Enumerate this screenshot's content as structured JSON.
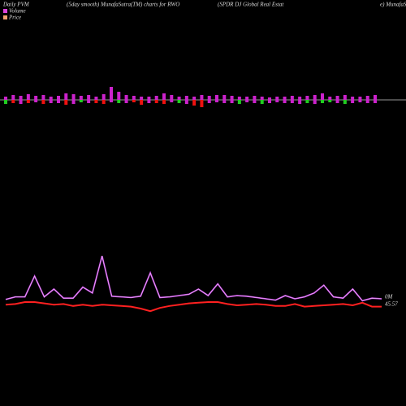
{
  "chart_data": [
    {
      "type": "bar",
      "title": "Daily PVM",
      "subtitle": "(5day smooth) MunafaSutra(TM) charts for RWO",
      "annotations": [
        "(SPDR DJ Global Real Estat",
        "e) MunafaS"
      ],
      "ylim": [
        -20,
        20
      ],
      "baseline_color": "#999999",
      "series": [
        {
          "color": "#cc22cc",
          "values": [
            4,
            6,
            5,
            7,
            5,
            6,
            4,
            5,
            8,
            7,
            5,
            6,
            4,
            7,
            16,
            10,
            6,
            5,
            4,
            4,
            5,
            8,
            6,
            4,
            5,
            4,
            6,
            5,
            6,
            6,
            5,
            4,
            4,
            5,
            4,
            3,
            4,
            4,
            5,
            4,
            5,
            6,
            8,
            4,
            5,
            6,
            4,
            4,
            5,
            6
          ]
        },
        {
          "colors": [
            "#22cc22",
            "#ee1111",
            "#cc22cc",
            "#ee1111",
            "#cc22cc",
            "#ee1111",
            "#cc22cc",
            "#cc22cc",
            "#ee1111",
            "#cc22cc",
            "#22cc22",
            "#cc22cc",
            "#ee1111",
            "#ee1111",
            "#cc22cc",
            "#22cc22",
            "#cc22cc",
            "#ee1111",
            "#ee1111",
            "#cc22cc",
            "#ee1111",
            "#ee1111",
            "#cc22cc",
            "#22cc22",
            "#cc22cc",
            "#ee1111",
            "#ee1111",
            "#cc22cc",
            "#cc22cc",
            "#cc22cc",
            "#cc22cc",
            "#22cc22",
            "#cc22cc",
            "#cc22cc",
            "#22cc22",
            "#cc22cc",
            "#cc22cc",
            "#cc22cc",
            "#cc22cc",
            "#cc22cc",
            "#22cc22",
            "#cc22cc",
            "#22cc22",
            "#22cc22",
            "#cc22cc",
            "#22cc22",
            "#cc22cc",
            "#cc22cc",
            "#cc22cc",
            "#cc22cc"
          ],
          "values": [
            -5,
            -4,
            -5,
            -4,
            -3,
            -5,
            -4,
            -4,
            -6,
            -5,
            -3,
            -4,
            -4,
            -5,
            -3,
            -4,
            -4,
            -3,
            -6,
            -4,
            -4,
            -5,
            -3,
            -4,
            -5,
            -7,
            -9,
            -4,
            -3,
            -4,
            -4,
            -5,
            -3,
            -4,
            -5,
            -4,
            -3,
            -4,
            -4,
            -5,
            -4,
            -5,
            -4,
            -3,
            -4,
            -5,
            -4,
            -3,
            -4,
            -4
          ]
        }
      ]
    },
    {
      "type": "line",
      "ylim": [
        -10,
        100
      ],
      "annotations": [
        "0M",
        "45.57"
      ],
      "series": [
        {
          "name": "Volume",
          "color": "#c040e0",
          "legend_color": "#dd44dd",
          "values": [
            14,
            18,
            18,
            50,
            18,
            30,
            16,
            16,
            33,
            24,
            81,
            19,
            18,
            17,
            19,
            55,
            17,
            18,
            20,
            22,
            30,
            20,
            38,
            18,
            20,
            19,
            17,
            15,
            13,
            20,
            15,
            18,
            24,
            36,
            18,
            16,
            30,
            12,
            16,
            15
          ]
        },
        {
          "name": "Price",
          "color": "#ff2020",
          "legend_color": "#f0a070",
          "values": [
            6,
            7,
            10,
            10,
            8,
            6,
            7,
            4,
            6,
            4,
            6,
            5,
            4,
            3,
            0,
            -4,
            1,
            4,
            6,
            8,
            9,
            10,
            10,
            7,
            5,
            6,
            7,
            6,
            4,
            4,
            7,
            3,
            4,
            5,
            6,
            7,
            5,
            9,
            3,
            3
          ]
        }
      ]
    }
  ]
}
